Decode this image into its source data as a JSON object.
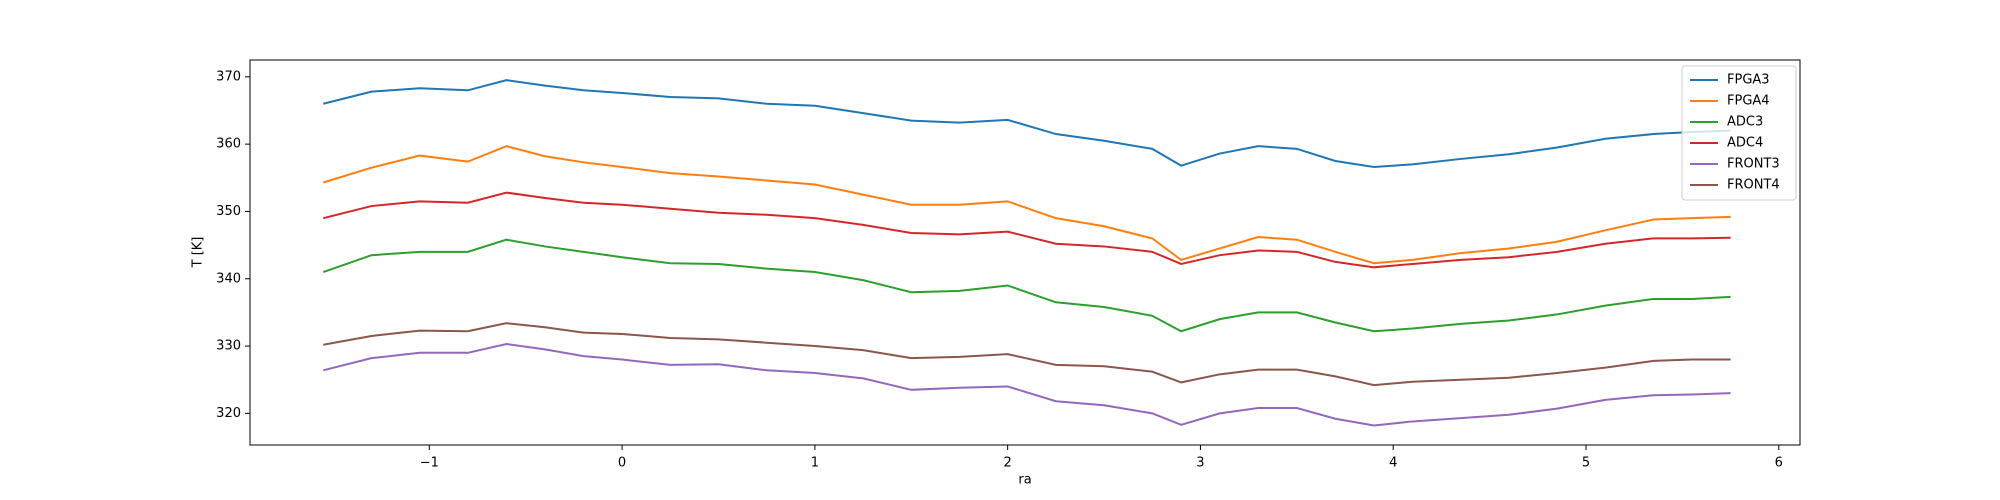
{
  "chart_data": {
    "type": "line",
    "x_label": "ra",
    "y_label": "T [K]",
    "x": [
      -1.55,
      -1.3,
      -1.05,
      -0.8,
      -0.6,
      -0.4,
      -0.2,
      0,
      0.25,
      0.5,
      0.75,
      1.0,
      1.25,
      1.5,
      1.75,
      2.0,
      2.25,
      2.5,
      2.75,
      2.9,
      3.1,
      3.3,
      3.5,
      3.7,
      3.9,
      4.1,
      4.35,
      4.6,
      4.85,
      5.1,
      5.35,
      5.55,
      5.75
    ],
    "series": [
      {
        "name": "FPGA3",
        "color": "#1f77b4",
        "values": [
          366,
          367.8,
          368.3,
          368,
          369.5,
          368.7,
          368,
          367.6,
          367,
          366.8,
          366,
          365.7,
          364.6,
          363.5,
          363.2,
          363.6,
          361.5,
          360.5,
          359.3,
          356.8,
          358.6,
          359.7,
          359.3,
          357.5,
          356.6,
          357,
          357.8,
          358.5,
          359.5,
          360.8,
          361.5,
          361.8,
          362
        ]
      },
      {
        "name": "FPGA4",
        "color": "#ff7f0e",
        "values": [
          354.3,
          356.5,
          358.3,
          357.4,
          359.7,
          358.2,
          357.3,
          356.6,
          355.7,
          355.2,
          354.6,
          354,
          352.5,
          351,
          351,
          351.5,
          349,
          347.8,
          346,
          342.8,
          344.5,
          346.2,
          345.8,
          344,
          342.3,
          342.8,
          343.8,
          344.5,
          345.5,
          347.2,
          348.8,
          349,
          349.2
        ]
      },
      {
        "name": "ADC3",
        "color": "#2ca02c",
        "values": [
          341,
          343.5,
          344,
          344,
          345.8,
          344.8,
          344,
          343.2,
          342.3,
          342.2,
          341.5,
          341,
          339.8,
          338,
          338.2,
          339,
          336.5,
          335.8,
          334.5,
          332.2,
          334,
          335,
          335,
          333.5,
          332.2,
          332.6,
          333.3,
          333.8,
          334.7,
          336,
          337,
          337,
          337.3
        ]
      },
      {
        "name": "ADC4",
        "color": "#d62728",
        "values": [
          349,
          350.8,
          351.5,
          351.3,
          352.8,
          352,
          351.3,
          351,
          350.4,
          349.8,
          349.5,
          349,
          348,
          346.8,
          346.6,
          347,
          345.2,
          344.8,
          344,
          342.2,
          343.5,
          344.2,
          344,
          342.5,
          341.7,
          342.2,
          342.8,
          343.2,
          344,
          345.2,
          346,
          346,
          346.1
        ]
      },
      {
        "name": "FRONT3",
        "color": "#9467bd",
        "values": [
          326.4,
          328.2,
          329,
          329,
          330.3,
          329.5,
          328.5,
          328,
          327.2,
          327.3,
          326.4,
          326,
          325.2,
          323.5,
          323.8,
          324,
          321.8,
          321.2,
          320,
          318.3,
          320,
          320.8,
          320.8,
          319.2,
          318.2,
          318.8,
          319.3,
          319.8,
          320.7,
          322,
          322.7,
          322.8,
          323
        ]
      },
      {
        "name": "FRONT4",
        "color": "#8c564b",
        "values": [
          330.2,
          331.5,
          332.3,
          332.2,
          333.4,
          332.8,
          332,
          331.8,
          331.2,
          331,
          330.5,
          330,
          329.4,
          328.2,
          328.4,
          328.8,
          327.2,
          327,
          326.2,
          324.6,
          325.8,
          326.5,
          326.5,
          325.5,
          324.2,
          324.7,
          325,
          325.3,
          326,
          326.8,
          327.8,
          328,
          328
        ]
      }
    ],
    "xlim": [
      -1.93,
      6.11
    ],
    "xticks": [
      {
        "value": -1,
        "label": "−1"
      },
      0,
      1,
      2,
      3,
      4,
      5,
      6
    ],
    "ylim": [
      315.3,
      372.5
    ],
    "yticks": [
      320,
      330,
      340,
      350,
      360,
      370
    ],
    "legend": "upper right"
  }
}
